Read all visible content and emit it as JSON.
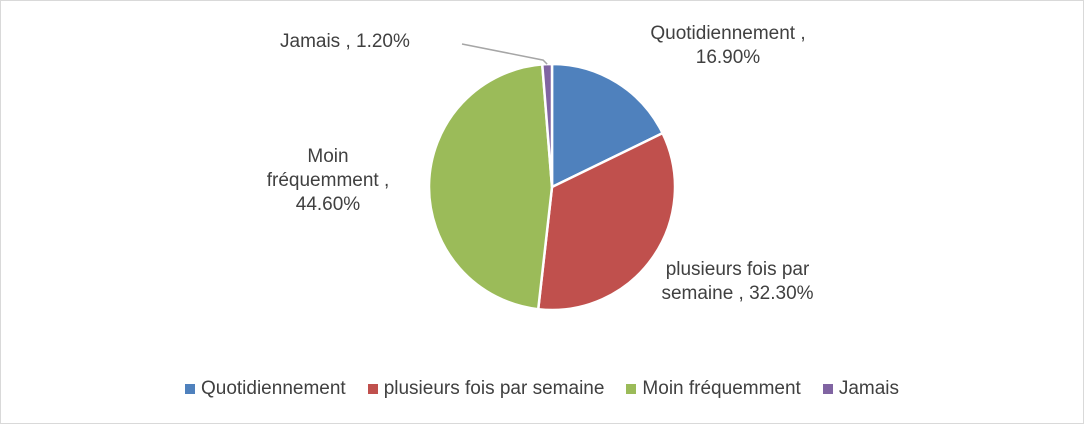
{
  "chart_data": {
    "type": "pie",
    "categories": [
      "Quotidiennement",
      "plusieurs fois par semaine",
      "Moin fréquemment",
      "Jamais"
    ],
    "values": [
      16.9,
      32.3,
      44.6,
      1.2
    ],
    "value_labels": [
      "Quotidiennement , 16.90%",
      "plusieurs fois par semaine , 32.30%",
      "Moin fréquemment , 44.60%",
      "Jamais , 1.20%"
    ],
    "colors": [
      "#4f81bd",
      "#c0504d",
      "#9bbb59",
      "#8064a2"
    ],
    "legend": "bottom"
  }
}
